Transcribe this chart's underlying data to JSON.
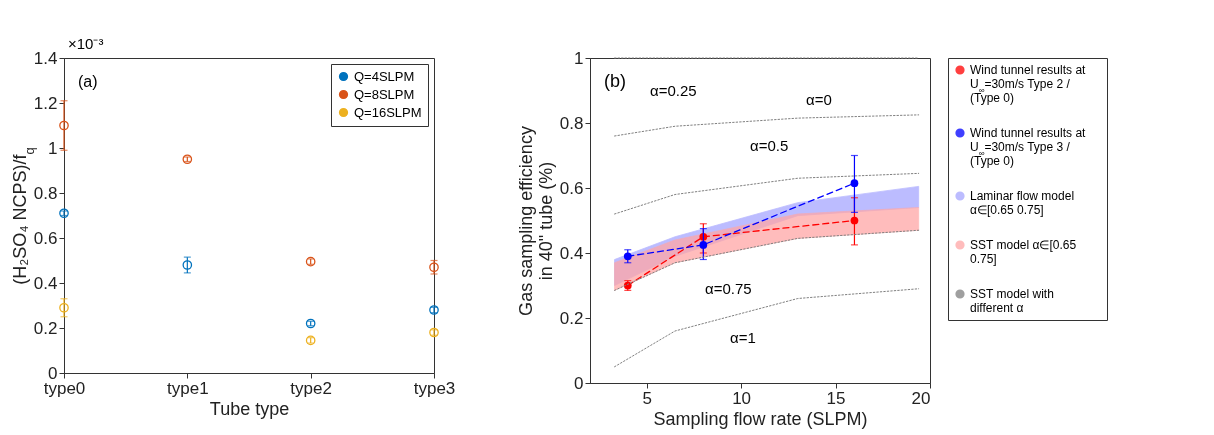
{
  "chart_data": [
    {
      "type": "scatter",
      "xlabel": "Tube type",
      "ylabel": "(H₂SO₄ NCPS)/f$_{q}$",
      "categories": [
        "type0",
        "type1",
        "type2",
        "type3"
      ],
      "ylim": [
        0,
        1.4
      ],
      "yticks": [
        0,
        0.2,
        0.4,
        0.6,
        0.8,
        1,
        1.2,
        1.4
      ],
      "marker": "circle",
      "legend": "top right",
      "annotations": [
        "(a)",
        "×10⁻³"
      ],
      "series": [
        {
          "name": "Q=4SLPM",
          "color": "#0072bd",
          "values": [
            0.71,
            0.48,
            0.22,
            0.28
          ],
          "errors": [
            0.01,
            0.035,
            0.01,
            0.012
          ]
        },
        {
          "name": "Q=8SLPM",
          "color": "#d95319",
          "values": [
            1.1,
            0.95,
            0.495,
            0.47
          ],
          "errors": [
            [
              0.99,
              1.21
            ],
            0.01,
            0.012,
            0.03
          ]
        },
        {
          "name": "Q=16SLPM",
          "color": "#edb120",
          "values": [
            0.29,
            null,
            0.145,
            0.18
          ],
          "errors": [
            0.04,
            null,
            0.012,
            0.012
          ]
        }
      ]
    },
    {
      "type": "line",
      "xlabel": "Sampling flow rate (SLPM)",
      "ylabel": "Gas sampling efficiency in 40\" tube (%)",
      "xlim": [
        2,
        20
      ],
      "xticks": [
        5,
        10,
        15,
        20
      ],
      "ylim": [
        0,
        1
      ],
      "yticks": [
        0,
        0.2,
        0.4,
        0.6,
        0.8,
        1
      ],
      "legend": "right",
      "annotations": [
        "(b)",
        "α=0",
        "α=0.25",
        "α=0.5",
        "α=0.75",
        "α=1"
      ],
      "series": [
        {
          "name": "Wind tunnel results at U$_{∞}$=30m/s Type 2 / (Type 0)",
          "color": "#ff0000",
          "x": [
            4,
            8,
            16
          ],
          "values": [
            0.3,
            0.45,
            0.5
          ],
          "errors": [
            0.015,
            [
              0.4,
              0.49
            ],
            [
              0.425,
              0.57
            ]
          ],
          "marker": "circle",
          "line_style": "dashed"
        },
        {
          "name": "Wind tunnel results at U$_{∞}$=30m/s Type 3 / (Type 0)",
          "color": "#0000ff",
          "x": [
            4,
            8,
            16
          ],
          "values": [
            0.39,
            0.425,
            0.615
          ],
          "errors": [
            0.02,
            [
              0.38,
              0.475
            ],
            [
              0.525,
              0.7
            ]
          ],
          "marker": "circle",
          "line_style": "dashed"
        },
        {
          "type": "area",
          "name": "Laminar flow model α∈[0.65 0.75]",
          "color": "#a6a6ff",
          "x": [
            3.3,
            6.5,
            13,
            19.4
          ],
          "values": [
            null,
            null,
            null,
            null
          ],
          "lower": [
            0.3,
            0.39,
            0.515,
            0.54
          ],
          "upper": [
            0.38,
            0.45,
            0.555,
            0.605
          ]
        },
        {
          "type": "area",
          "name": "SST model α∈[0.65 0.75]",
          "color": "#ffa6a6",
          "x": [
            3.3,
            6.5,
            13,
            19.4
          ],
          "values": [
            null,
            null,
            null,
            null
          ],
          "lower": [
            0.285,
            0.37,
            0.445,
            0.47
          ],
          "upper": [
            0.37,
            0.44,
            0.52,
            0.54
          ]
        },
        {
          "name": "SST model with different α",
          "color": "#808080",
          "x": [
            3.3,
            6.5,
            13,
            19.4
          ],
          "values": [
            1,
            1,
            1,
            1
          ],
          "marker": "none",
          "line_style": "dotted"
        },
        {
          "color": "#808080",
          "x": [
            3.3,
            6.5,
            13,
            19.4
          ],
          "values": [
            0.76,
            0.79,
            0.815,
            0.825
          ],
          "marker": "none",
          "line_style": "dotted"
        },
        {
          "color": "#808080",
          "x": [
            3.3,
            6.5,
            13,
            19.4
          ],
          "values": [
            0.52,
            0.58,
            0.63,
            0.645
          ],
          "marker": "none",
          "line_style": "dotted"
        },
        {
          "color": "#808080",
          "x": [
            3.3,
            6.5,
            13,
            19.4
          ],
          "values": [
            0.285,
            0.37,
            0.445,
            0.47
          ],
          "marker": "none",
          "line_style": "dotted"
        },
        {
          "color": "#808080",
          "x": [
            3.3,
            6.5,
            13,
            19.4
          ],
          "values": [
            0.05,
            0.16,
            0.26,
            0.29
          ],
          "marker": "none",
          "line_style": "dotted"
        }
      ]
    }
  ]
}
